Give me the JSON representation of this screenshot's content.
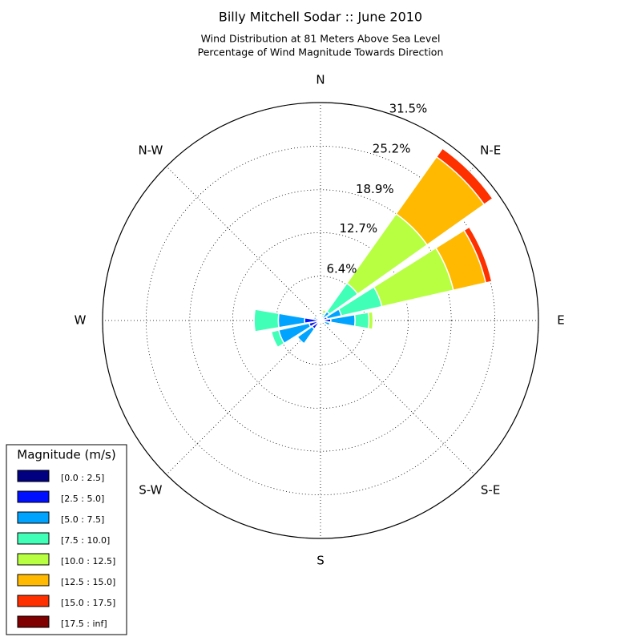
{
  "chart_data": {
    "type": "windrose",
    "title": "Billy Mitchell Sodar :: June 2010",
    "subtitle": [
      "Wind Distribution at 81 Meters Above Sea Level",
      "Percentage of Wind Magnitude Towards Direction"
    ],
    "direction_labels": [
      "N",
      "N-E",
      "E",
      "S-E",
      "S",
      "S-W",
      "W",
      "N-W"
    ],
    "x": [
      0,
      22.5,
      45,
      67.5,
      90,
      112.5,
      135,
      157.5,
      180,
      202.5,
      225,
      247.5,
      270,
      292.5,
      315,
      337.5
    ],
    "rlim": [
      0,
      31.5
    ],
    "rticks": [
      {
        "value": 6.4,
        "label": "6.4%"
      },
      {
        "value": 12.7,
        "label": "12.7%"
      },
      {
        "value": 18.9,
        "label": "18.9%"
      },
      {
        "value": 25.2,
        "label": "25.2%"
      },
      {
        "value": 31.5,
        "label": "31.5%"
      }
    ],
    "grid": true,
    "legend_title": "Magnitude (m/s)",
    "legend": "lower left",
    "series": [
      {
        "name": "[0.0 : 2.5]",
        "color": "#000080",
        "values": [
          0.1,
          0.1,
          0.1,
          0.2,
          0.2,
          0.1,
          0.1,
          0.1,
          0.1,
          0.1,
          0.3,
          0.2,
          0.3,
          0.2,
          0.1,
          0.1
        ]
      },
      {
        "name": "[2.5 : 5.0]",
        "color": "#0010ff",
        "values": [
          0.2,
          0.3,
          0.3,
          0.8,
          1.3,
          0.5,
          0.2,
          0.1,
          0.1,
          0.3,
          1.2,
          1.5,
          2.0,
          0.5,
          0.3,
          0.2
        ]
      },
      {
        "name": "[5.0 : 7.5]",
        "color": "#00a4ff",
        "values": [
          0.2,
          0.4,
          1.2,
          2.1,
          3.5,
          0.8,
          0.1,
          0,
          0,
          0.2,
          2.6,
          4.5,
          3.8,
          0.3,
          0.2,
          0.1
        ]
      },
      {
        "name": "[7.5 : 10.0]",
        "color": "#40ffb7",
        "values": [
          0,
          0.3,
          5.0,
          6.0,
          2.0,
          0.2,
          0,
          0,
          0,
          0,
          0,
          1.1,
          3.5,
          0,
          0,
          0
        ]
      },
      {
        "name": "[10.0 : 12.5]",
        "color": "#b7ff40",
        "values": [
          0,
          0.5,
          12.3,
          10.6,
          0.6,
          0,
          0,
          0,
          0,
          0,
          0,
          0,
          0,
          0,
          0,
          0
        ]
      },
      {
        "name": "[12.5 : 15.0]",
        "color": "#ffb900",
        "values": [
          0,
          0,
          10.1,
          4.8,
          0,
          0,
          0,
          0,
          0,
          0,
          0,
          0,
          0,
          0,
          0,
          0
        ]
      },
      {
        "name": "[15.0 : 17.5]",
        "color": "#ff3000",
        "values": [
          0,
          0,
          1.5,
          0.9,
          0,
          0,
          0,
          0,
          0,
          0,
          0,
          0,
          0,
          0,
          0,
          0
        ]
      },
      {
        "name": "[17.5 : inf]",
        "color": "#800000",
        "values": [
          0,
          0,
          0,
          0,
          0,
          0,
          0,
          0,
          0,
          0,
          0,
          0,
          0,
          0,
          0,
          0
        ]
      }
    ]
  }
}
